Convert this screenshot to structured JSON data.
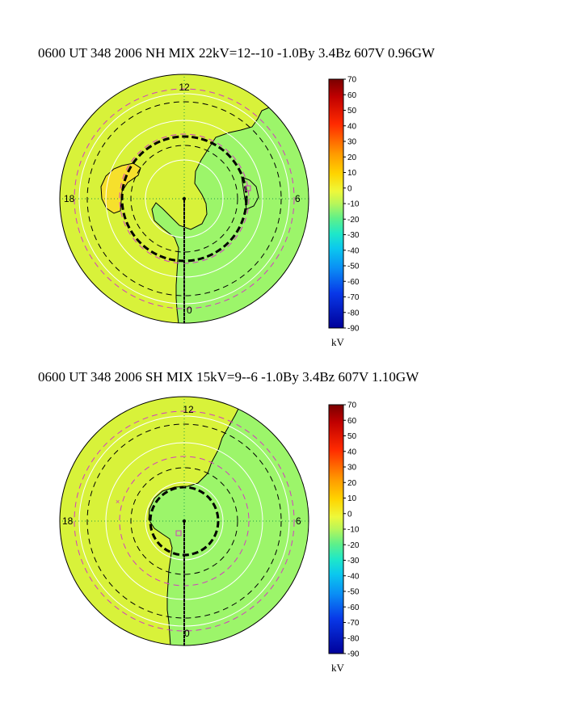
{
  "chart_data": [
    {
      "type": "polar_contour",
      "title": "0600 UT 348 2006 NH MIX 22kV=12--10 -1.0By  3.4Bz 607V  0.96GW",
      "hemisphere": "NH",
      "mlt_labels": {
        "noon": "12",
        "dusk": "18",
        "dawn": "6",
        "midnight": "0"
      },
      "potential_max_kV": 12,
      "potential_min_kV": -10,
      "cross_polar_kV": 22,
      "By": -1.0,
      "Bz": 3.4,
      "V": 607,
      "power_GW": 0.96,
      "fill_colors": {
        "positive": "#d8f23a",
        "negative": "#9cf56a",
        "peak": "#f6e02c"
      },
      "colorbar": {
        "ticks": [
          70,
          60,
          50,
          40,
          30,
          20,
          10,
          0,
          -10,
          -20,
          -30,
          -40,
          -50,
          -60,
          -70,
          -80,
          -90
        ],
        "range": [
          -90,
          70
        ],
        "unit": "kV"
      }
    },
    {
      "type": "polar_contour",
      "title": "0600 UT 348 2006 SH MIX 15kV=9--6 -1.0By  3.4Bz 607V  1.10GW",
      "hemisphere": "SH",
      "mlt_labels": {
        "noon": "12",
        "dusk": "18",
        "dawn": "6",
        "midnight": "0"
      },
      "potential_max_kV": 9,
      "potential_min_kV": -6,
      "cross_polar_kV": 15,
      "By": -1.0,
      "Bz": 3.4,
      "V": 607,
      "power_GW": 1.1,
      "fill_colors": {
        "positive": "#d8f23a",
        "negative": "#9cf56a"
      },
      "colorbar": {
        "ticks": [
          70,
          60,
          50,
          40,
          30,
          20,
          10,
          0,
          -10,
          -20,
          -30,
          -40,
          -50,
          -60,
          -70,
          -80,
          -90
        ],
        "range": [
          -90,
          70
        ],
        "unit": "kV"
      }
    }
  ]
}
